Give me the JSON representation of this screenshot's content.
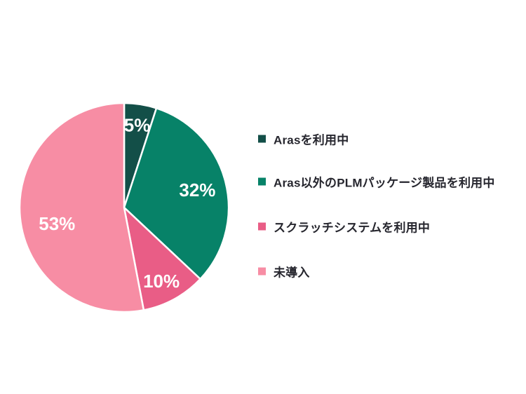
{
  "chart_data": {
    "type": "pie",
    "title": "",
    "start_angle_deg": -90,
    "direction": "clockwise",
    "total": 100,
    "legend_position": "right",
    "background": "#ffffff",
    "slice_label_color": "#ffffff",
    "legend_text_color": "#26262e",
    "separator_color": "#ffffff",
    "slices": [
      {
        "label": "Arasを利用中",
        "value": 5,
        "pct_label": "5%",
        "color": "#134f48"
      },
      {
        "label": "Aras以外のPLMパッケージ製品を利用中",
        "value": 32,
        "pct_label": "32%",
        "color": "#078268"
      },
      {
        "label": "スクラッチシステムを利用中",
        "value": 10,
        "pct_label": "10%",
        "color": "#e95d86"
      },
      {
        "label": "未導入",
        "value": 53,
        "pct_label": "53%",
        "color": "#f78da4"
      }
    ]
  }
}
